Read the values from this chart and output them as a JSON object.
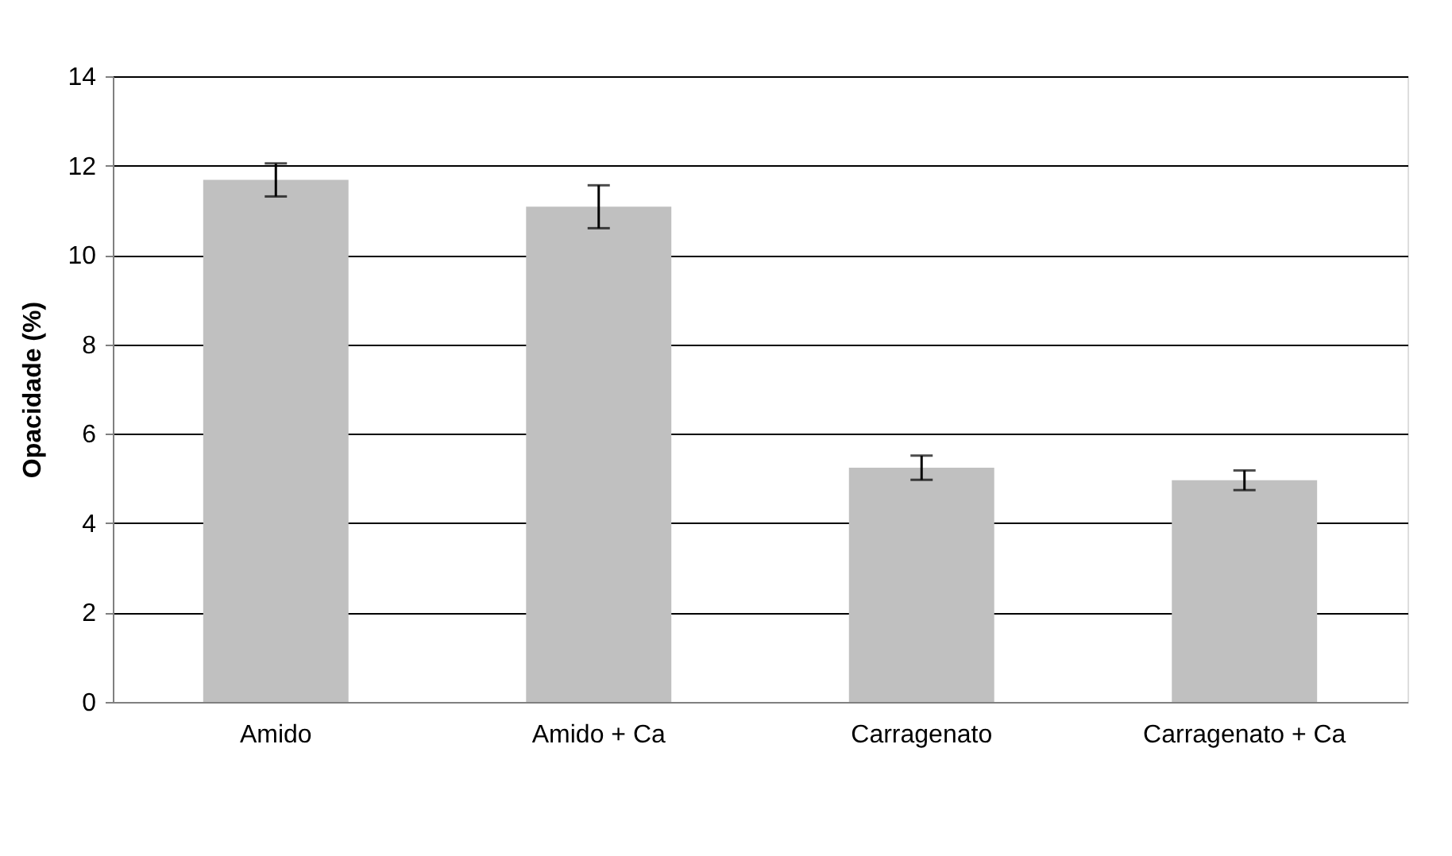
{
  "chart_data": {
    "type": "bar",
    "ylabel": "Opacidade (%)",
    "categories": [
      "Amido",
      "Amido + Ca",
      "Carragenato",
      "Carragenato + Ca"
    ],
    "values": [
      11.68,
      11.08,
      5.24,
      4.96
    ],
    "errors": [
      0.37,
      0.48,
      0.27,
      0.22
    ],
    "color": "#c0c0c0",
    "ylim": [
      0,
      14
    ],
    "yticks": [
      0,
      2,
      4,
      6,
      8,
      10,
      12,
      14
    ],
    "grid": "y"
  }
}
